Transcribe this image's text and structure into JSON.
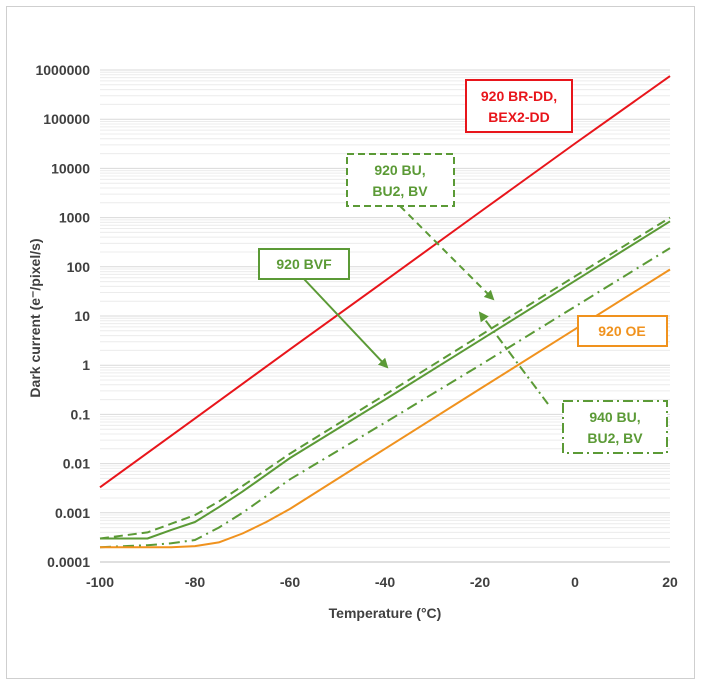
{
  "chart_data": {
    "type": "line",
    "title": "",
    "xlabel": "Temperature (°C)",
    "ylabel": "Dark current (e⁻/pixel/s)",
    "xlim": [
      -100,
      20
    ],
    "ylim": [
      0.0001,
      1000000
    ],
    "y_scale": "log",
    "grid": "horizontal major and minor",
    "x_ticks": [
      "-100",
      "-80",
      "-60",
      "-40",
      "-20",
      "0",
      "20"
    ],
    "y_ticks": [
      "0.0001",
      "0.001",
      "0.01",
      "0.1",
      "1",
      "10",
      "100",
      "1000",
      "10000",
      "100000",
      "1000000"
    ],
    "series": [
      {
        "name": "920 BR-DD, BEX2-DD",
        "color": "#e8151b",
        "dash": "solid",
        "x": [
          -100,
          -80,
          -60,
          -40,
          -20,
          0,
          20
        ],
        "y": [
          0.0033,
          0.083,
          2.1,
          52,
          1300,
          32000,
          750000
        ]
      },
      {
        "name": "920 BU, BU2, BV",
        "color": "#5b9a36",
        "dash": "dashed",
        "x": [
          -100,
          -90,
          -85,
          -80,
          -75,
          -70,
          -60,
          -40,
          -20,
          0,
          20
        ],
        "y": [
          0.0003,
          0.0004,
          0.0006,
          0.0009,
          0.0017,
          0.0035,
          0.016,
          0.25,
          4.0,
          64,
          1000
        ]
      },
      {
        "name": "920 BVF",
        "color": "#5b9a36",
        "dash": "solid",
        "x": [
          -100,
          -90,
          -85,
          -80,
          -75,
          -70,
          -60,
          -40,
          -20,
          0,
          20
        ],
        "y": [
          0.0003,
          0.0003,
          0.00045,
          0.00065,
          0.0013,
          0.0027,
          0.013,
          0.2,
          3.2,
          52,
          840
        ]
      },
      {
        "name": "940 BU, BU2, BV",
        "color": "#5b9a36",
        "dash": "dashdot",
        "x": [
          -100,
          -90,
          -85,
          -80,
          -75,
          -70,
          -60,
          -40,
          -20,
          0,
          20
        ],
        "y": [
          0.0002,
          0.00022,
          0.00024,
          0.00028,
          0.0005,
          0.001,
          0.0048,
          0.068,
          1.0,
          15.5,
          240
        ]
      },
      {
        "name": "920 OE",
        "color": "#f0921e",
        "dash": "solid",
        "x": [
          -100,
          -90,
          -85,
          -80,
          -75,
          -70,
          -65,
          -60,
          -40,
          -20,
          0,
          20
        ],
        "y": [
          0.0002,
          0.0002,
          0.0002,
          0.00021,
          0.00025,
          0.00038,
          0.00065,
          0.0012,
          0.02,
          0.33,
          5.4,
          88
        ]
      }
    ],
    "annotations": [
      {
        "text_lines": [
          "920 BR-DD,",
          "BEX2-DD"
        ],
        "color": "#e8151b",
        "border": "solid"
      },
      {
        "text_lines": [
          "920 BU,",
          "BU2, BV"
        ],
        "color": "#5b9a36",
        "border": "dashed",
        "arrow": "dashed"
      },
      {
        "text_lines": [
          "920 BVF"
        ],
        "color": "#5b9a36",
        "border": "solid",
        "arrow": "solid"
      },
      {
        "text_lines": [
          "920 OE"
        ],
        "color": "#f0921e",
        "border": "filled"
      },
      {
        "text_lines": [
          "940 BU,",
          "BU2, BV"
        ],
        "color": "#5b9a36",
        "border": "dashdot",
        "arrow": "dashdot"
      }
    ]
  }
}
